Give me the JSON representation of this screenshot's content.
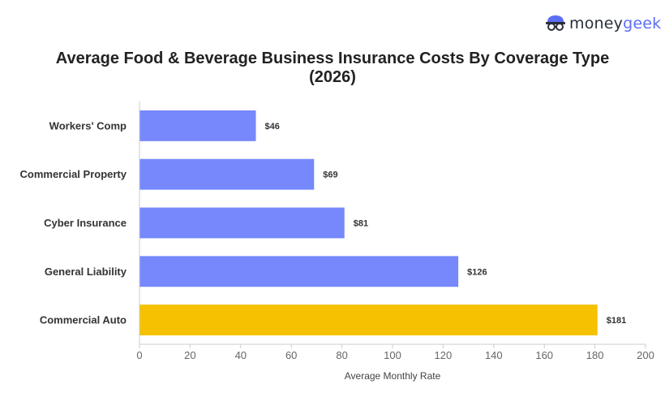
{
  "brand": {
    "part1": "money",
    "part2": "geek",
    "icon": "moneygeek-glasses-icon"
  },
  "chart_data": {
    "type": "bar",
    "orientation": "horizontal",
    "title": "Average Food & Beverage Business Insurance Costs By Coverage Type (2026)",
    "categories": [
      "Workers' Comp",
      "Commercial Property",
      "Cyber Insurance",
      "General Liability",
      "Commercial Auto"
    ],
    "values": [
      46,
      69,
      81,
      126,
      181
    ],
    "value_labels": [
      "$46",
      "$69",
      "$81",
      "$126",
      "$181"
    ],
    "bar_colors": [
      "#7688fb",
      "#7688fb",
      "#7688fb",
      "#7688fb",
      "#f5c100"
    ],
    "xlabel": "Average Monthly Rate",
    "ylabel": "",
    "xlim": [
      0,
      200
    ],
    "xticks": [
      0,
      20,
      40,
      60,
      80,
      100,
      120,
      140,
      160,
      180,
      200
    ],
    "grid": false,
    "legend": "none"
  }
}
